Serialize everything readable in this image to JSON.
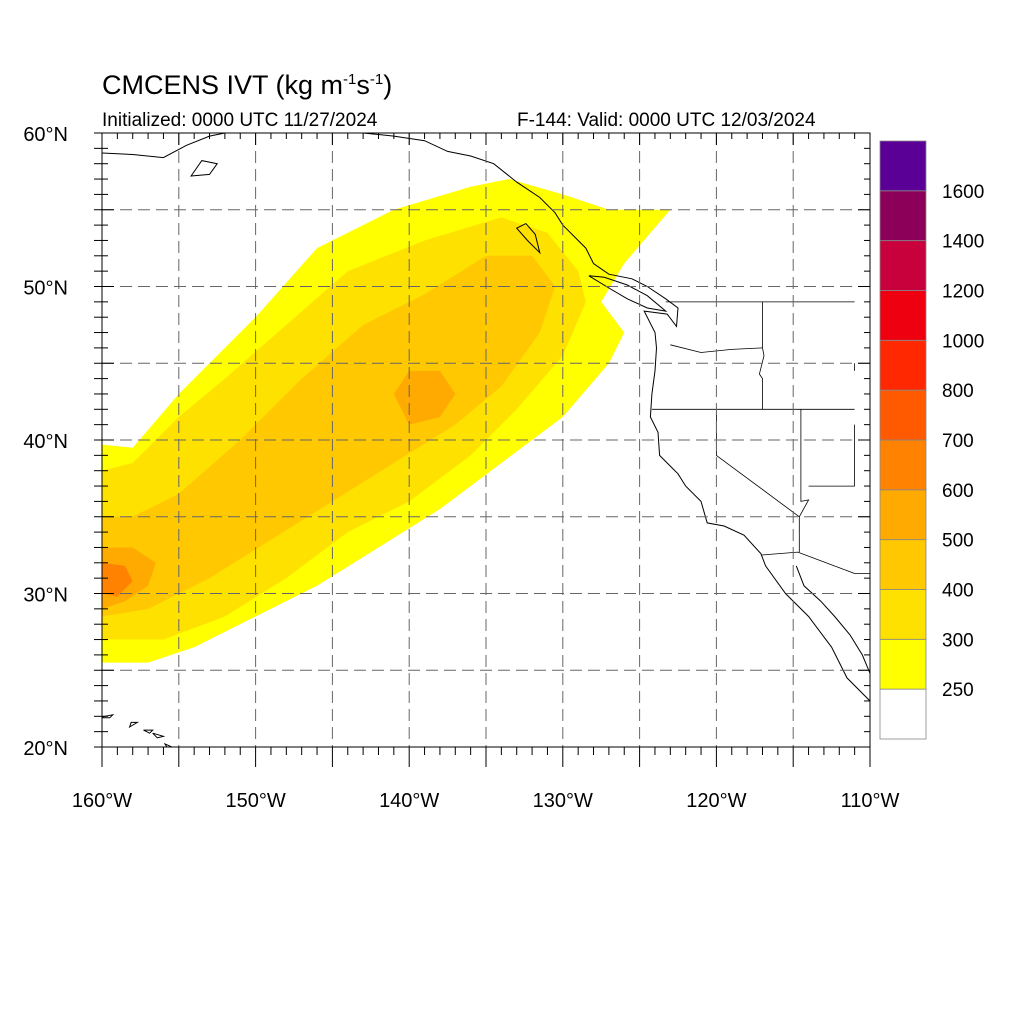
{
  "title": {
    "main": "CMCENS IVT (kg m",
    "sup1": "-1",
    "mid": "s",
    "sup2": "-1",
    "end": ")",
    "initialized": "Initialized: 0000 UTC 11/27/2024",
    "valid": "F-144: Valid: 0000 UTC 12/03/2024"
  },
  "map": {
    "lon_range": [
      -160,
      -110
    ],
    "lat_range": [
      20,
      60
    ],
    "lon_ticks": [
      {
        "value": -160,
        "label": "160°W"
      },
      {
        "value": -150,
        "label": "150°W"
      },
      {
        "value": -140,
        "label": "140°W"
      },
      {
        "value": -130,
        "label": "130°W"
      },
      {
        "value": -120,
        "label": "120°W"
      },
      {
        "value": -110,
        "label": "110°W"
      }
    ],
    "lat_ticks": [
      {
        "value": 20,
        "label": "20°N"
      },
      {
        "value": 30,
        "label": "30°N"
      },
      {
        "value": 40,
        "label": "40°N"
      },
      {
        "value": 50,
        "label": "50°N"
      },
      {
        "value": 60,
        "label": "60°N"
      }
    ],
    "grid_lons": [
      -160,
      -155,
      -150,
      -145,
      -140,
      -135,
      -130,
      -125,
      -120,
      -115,
      -110
    ],
    "grid_lats": [
      20,
      25,
      30,
      35,
      40,
      45,
      50,
      55,
      60
    ],
    "grid_style": "dashed"
  },
  "colorbar": {
    "colors": [
      "#ffffff",
      "#ffff00",
      "#ffe100",
      "#ffc800",
      "#ffaa00",
      "#ff8200",
      "#ff5a00",
      "#ff2800",
      "#ee0010",
      "#c8003c",
      "#8c005a",
      "#5a0096"
    ],
    "labels": [
      "250",
      "300",
      "400",
      "500",
      "600",
      "700",
      "800",
      "1000",
      "1200",
      "1400",
      "1600"
    ]
  },
  "ivt_field": {
    "units": "kg m-1 s-1",
    "levels_index_note_free": [
      {
        "level": 1,
        "polygon": [
          [
            -160,
            25.5
          ],
          [
            -157,
            25.5
          ],
          [
            -154,
            26.5
          ],
          [
            -150,
            28.5
          ],
          [
            -146,
            30.5
          ],
          [
            -142,
            33
          ],
          [
            -138,
            35.5
          ],
          [
            -134,
            38.5
          ],
          [
            -130,
            41.5
          ],
          [
            -127,
            45
          ],
          [
            -126,
            47
          ],
          [
            -127.5,
            49
          ],
          [
            -126,
            51.5
          ],
          [
            -123,
            55
          ],
          [
            -127,
            55
          ],
          [
            -130,
            56
          ],
          [
            -133.5,
            57
          ],
          [
            -136,
            56.5
          ],
          [
            -141,
            55
          ],
          [
            -146,
            52.5
          ],
          [
            -150,
            48
          ],
          [
            -153,
            45
          ],
          [
            -155,
            43
          ],
          [
            -158,
            39.5
          ],
          [
            -160,
            39.7
          ]
        ]
      },
      {
        "level": 2,
        "polygon": [
          [
            -160,
            27
          ],
          [
            -156,
            27
          ],
          [
            -152,
            28.5
          ],
          [
            -148,
            31
          ],
          [
            -144,
            34
          ],
          [
            -140,
            36
          ],
          [
            -136,
            39
          ],
          [
            -133,
            42
          ],
          [
            -130,
            45.5
          ],
          [
            -128.5,
            49
          ],
          [
            -129,
            51
          ],
          [
            -131,
            53.5
          ],
          [
            -134,
            54.5
          ],
          [
            -139,
            53
          ],
          [
            -144,
            51
          ],
          [
            -148,
            47.5
          ],
          [
            -152,
            44
          ],
          [
            -155,
            41.5
          ],
          [
            -158,
            38.5
          ],
          [
            -160,
            38
          ]
        ]
      },
      {
        "level": 3,
        "polygon": [
          [
            -160,
            28.5
          ],
          [
            -157,
            29
          ],
          [
            -153,
            31
          ],
          [
            -149,
            33.5
          ],
          [
            -145,
            36
          ],
          [
            -141,
            38.5
          ],
          [
            -137,
            41
          ],
          [
            -134,
            43.5
          ],
          [
            -131.5,
            47
          ],
          [
            -130.5,
            50
          ],
          [
            -132,
            52
          ],
          [
            -135,
            52
          ],
          [
            -139,
            49.5
          ],
          [
            -143,
            47.5
          ],
          [
            -147,
            44
          ],
          [
            -151,
            40
          ],
          [
            -155,
            36.5
          ],
          [
            -158,
            35
          ],
          [
            -160,
            35
          ]
        ]
      },
      {
        "level": 4,
        "polygon": [
          [
            -160,
            29
          ],
          [
            -158.5,
            29.5
          ],
          [
            -157,
            30.5
          ],
          [
            -156.5,
            32
          ],
          [
            -158,
            33
          ],
          [
            -160,
            33
          ]
        ]
      },
      {
        "level": 4,
        "polygon": [
          [
            -140,
            41
          ],
          [
            -138,
            41.5
          ],
          [
            -137,
            43
          ],
          [
            -138,
            44.5
          ],
          [
            -140,
            44.5
          ],
          [
            -141,
            43
          ]
        ]
      },
      {
        "level": 5,
        "polygon": [
          [
            -160,
            30
          ],
          [
            -159,
            29.8
          ],
          [
            -158,
            30.8
          ],
          [
            -158.5,
            31.8
          ],
          [
            -160,
            32
          ]
        ]
      }
    ]
  },
  "coastlines": {
    "north_america": [
      [
        -110,
        23
      ],
      [
        -111.5,
        24.5
      ],
      [
        -112.5,
        26.5
      ],
      [
        -114,
        28.5
      ],
      [
        -115.5,
        30
      ],
      [
        -116.8,
        31.8
      ],
      [
        -117.1,
        32.6
      ],
      [
        -118.2,
        33.8
      ],
      [
        -119.5,
        34.4
      ],
      [
        -120.6,
        34.6
      ],
      [
        -121,
        36
      ],
      [
        -122,
        37
      ],
      [
        -122.5,
        37.8
      ],
      [
        -123,
        38.3
      ],
      [
        -123.7,
        39
      ],
      [
        -123.8,
        40.5
      ],
      [
        -124.3,
        41.5
      ],
      [
        -124.2,
        43
      ],
      [
        -124,
        44.5
      ],
      [
        -123.9,
        46
      ],
      [
        -124,
        47
      ],
      [
        -124.7,
        48.4
      ],
      [
        -123.2,
        48.2
      ],
      [
        -122.6,
        47.4
      ],
      [
        -122.5,
        48.6
      ],
      [
        -123.3,
        49.2
      ],
      [
        -124.5,
        50
      ],
      [
        -125.5,
        50.5
      ],
      [
        -127,
        50.8
      ],
      [
        -128,
        51.5
      ],
      [
        -128.5,
        52.5
      ],
      [
        -130,
        54
      ],
      [
        -130.5,
        54.8
      ],
      [
        -131.5,
        55.8
      ],
      [
        -133,
        56.8
      ],
      [
        -134.5,
        58
      ],
      [
        -136,
        58.5
      ],
      [
        -137.5,
        58.8
      ],
      [
        -139,
        59.5
      ],
      [
        -141,
        59.8
      ],
      [
        -143,
        60
      ]
    ],
    "gulf_of_california": [
      [
        -114.8,
        31.8
      ],
      [
        -114.3,
        30.5
      ],
      [
        -113.2,
        29.5
      ],
      [
        -112.3,
        28.5
      ],
      [
        -111.3,
        27.3
      ],
      [
        -110.5,
        26
      ],
      [
        -110,
        24.8
      ]
    ],
    "vancouver_island": [
      [
        -123.3,
        48.4
      ],
      [
        -124.5,
        48.6
      ],
      [
        -125.8,
        49.2
      ],
      [
        -127,
        49.9
      ],
      [
        -128.3,
        50.7
      ],
      [
        -127.3,
        50.6
      ],
      [
        -125.8,
        50.1
      ],
      [
        -124.5,
        49.4
      ]
    ],
    "haida_gwaii": [
      [
        -131.5,
        52.2
      ],
      [
        -132.3,
        53
      ],
      [
        -133,
        53.8
      ],
      [
        -132.4,
        54.1
      ],
      [
        -131.8,
        53.4
      ]
    ],
    "alaska": [
      [
        -160,
        58.7
      ],
      [
        -158,
        58.6
      ],
      [
        -156,
        58.4
      ],
      [
        -154.5,
        59.2
      ],
      [
        -153,
        59.8
      ],
      [
        -152,
        60
      ]
    ],
    "kodiak": [
      [
        -154.2,
        57.2
      ],
      [
        -153,
        57.3
      ],
      [
        -152.5,
        58
      ],
      [
        -153.5,
        58.2
      ]
    ],
    "hawaii": [
      [
        [
          -160.3,
          21.9
        ],
        [
          -159.3,
          22.1
        ],
        [
          -159.5,
          21.9
        ]
      ],
      [
        [
          -158.2,
          21.3
        ],
        [
          -157.7,
          21.6
        ],
        [
          -158.1,
          21.6
        ]
      ],
      [
        [
          -157.3,
          21.1
        ],
        [
          -156.7,
          21.1
        ],
        [
          -156.9,
          20.9
        ]
      ],
      [
        [
          -156.7,
          20.9
        ],
        [
          -156,
          20.7
        ],
        [
          -156.4,
          20.6
        ]
      ],
      [
        [
          -155.9,
          20.2
        ],
        [
          -155,
          19.8
        ],
        [
          -155.5,
          19.5
        ]
      ]
    ],
    "state_borders": [
      [
        [
          -124.2,
          42
        ],
        [
          -120,
          42
        ],
        [
          -117,
          42
        ],
        [
          -111,
          42
        ]
      ],
      [
        [
          -120,
          42
        ],
        [
          -120,
          39
        ],
        [
          -114.6,
          35
        ],
        [
          -114.6,
          32.7
        ]
      ],
      [
        [
          -117,
          49
        ],
        [
          -117,
          46
        ],
        [
          -116.9,
          45.5
        ],
        [
          -117.2,
          44.3
        ],
        [
          -117,
          44
        ],
        [
          -117,
          42
        ]
      ],
      [
        [
          -123,
          46.2
        ],
        [
          -121,
          45.7
        ],
        [
          -119,
          45.9
        ],
        [
          -117,
          46
        ]
      ],
      [
        [
          -123.3,
          49
        ],
        [
          -117,
          49
        ],
        [
          -111,
          49
        ]
      ],
      [
        [
          -114.5,
          42
        ],
        [
          -114.5,
          36
        ],
        [
          -114,
          36.1
        ],
        [
          -114.6,
          35
        ]
      ],
      [
        [
          -117.1,
          32.5
        ],
        [
          -114.7,
          32.7
        ],
        [
          -111,
          31.3
        ],
        [
          -110,
          31.3
        ]
      ],
      [
        [
          -111,
          45
        ],
        [
          -111,
          44.5
        ]
      ],
      [
        [
          -111,
          41
        ],
        [
          -111,
          37
        ]
      ],
      [
        [
          -114,
          37
        ],
        [
          -111,
          37
        ]
      ]
    ]
  }
}
